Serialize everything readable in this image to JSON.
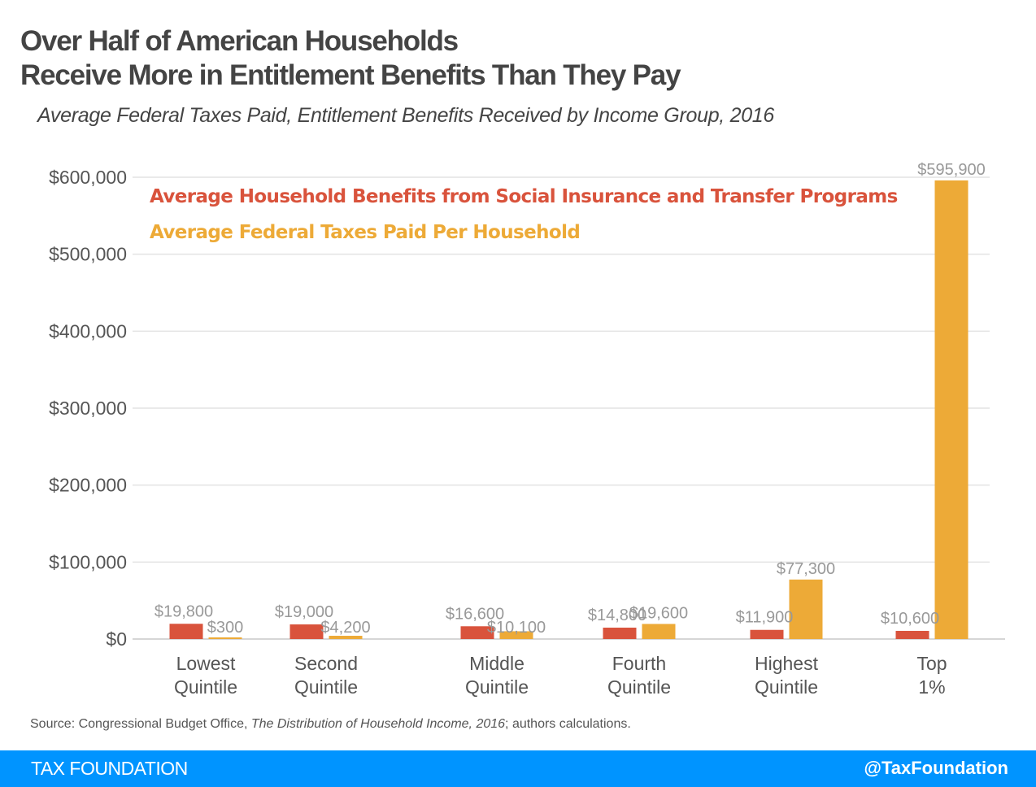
{
  "header": {
    "title_line1": "Over Half of American Households",
    "title_line2": "Receive More in Entitlement Benefits Than They Pay",
    "subtitle": "Average Federal Taxes Paid, Entitlement Benefits Received by Income Group, 2016"
  },
  "colors": {
    "benefits": "#d9533c",
    "taxes": "#edaa37",
    "footer_bg": "#0094ff",
    "grid": "#e3e3e3",
    "axis_text": "#555555",
    "data_label": "#999999"
  },
  "chart_data": {
    "type": "bar",
    "title": "Over Half of American Households Receive More in Entitlement Benefits Than They Pay",
    "subtitle": "Average Federal Taxes Paid, Entitlement Benefits Received by Income Group, 2016",
    "categories": [
      [
        "Lowest",
        "Quintile"
      ],
      [
        "Second",
        "Quintile"
      ],
      [
        "Middle",
        "Quintile"
      ],
      [
        "Fourth",
        "Quintile"
      ],
      [
        "Highest",
        "Quintile"
      ],
      [
        "Top",
        "1%"
      ]
    ],
    "series": [
      {
        "name": "Average Household Benefits from Social Insurance and Transfer Programs",
        "color": "#d9533c",
        "values": [
          19800,
          19000,
          16600,
          14800,
          11900,
          10600
        ],
        "labels": [
          "$19,800",
          "$19,000",
          "$16,600",
          "$14,800",
          "$11,900",
          "$10,600"
        ]
      },
      {
        "name": "Average Federal Taxes Paid Per Household",
        "color": "#edaa37",
        "values": [
          300,
          4200,
          10100,
          19600,
          77300,
          595900
        ],
        "labels": [
          "$300",
          "$4,200",
          "$10,100",
          "$19,600",
          "$77,300",
          "$595,900"
        ]
      }
    ],
    "xlabel": "",
    "ylabel": "",
    "ylim": [
      0,
      600000
    ],
    "yticks": [
      0,
      100000,
      200000,
      300000,
      400000,
      500000,
      600000
    ],
    "ytick_labels": [
      "$0",
      "$100,000",
      "$200,000",
      "$300,000",
      "$400,000",
      "$500,000",
      "$600,000"
    ],
    "grid": true,
    "legend_position": "top-left"
  },
  "footer": {
    "source_prefix": "Source: Congressional Budget Office, ",
    "source_title": "The Distribution of Household Income, 2016",
    "source_suffix": "; authors calculations.",
    "brand": "TAX FOUNDATION",
    "handle": "@TaxFoundation"
  }
}
